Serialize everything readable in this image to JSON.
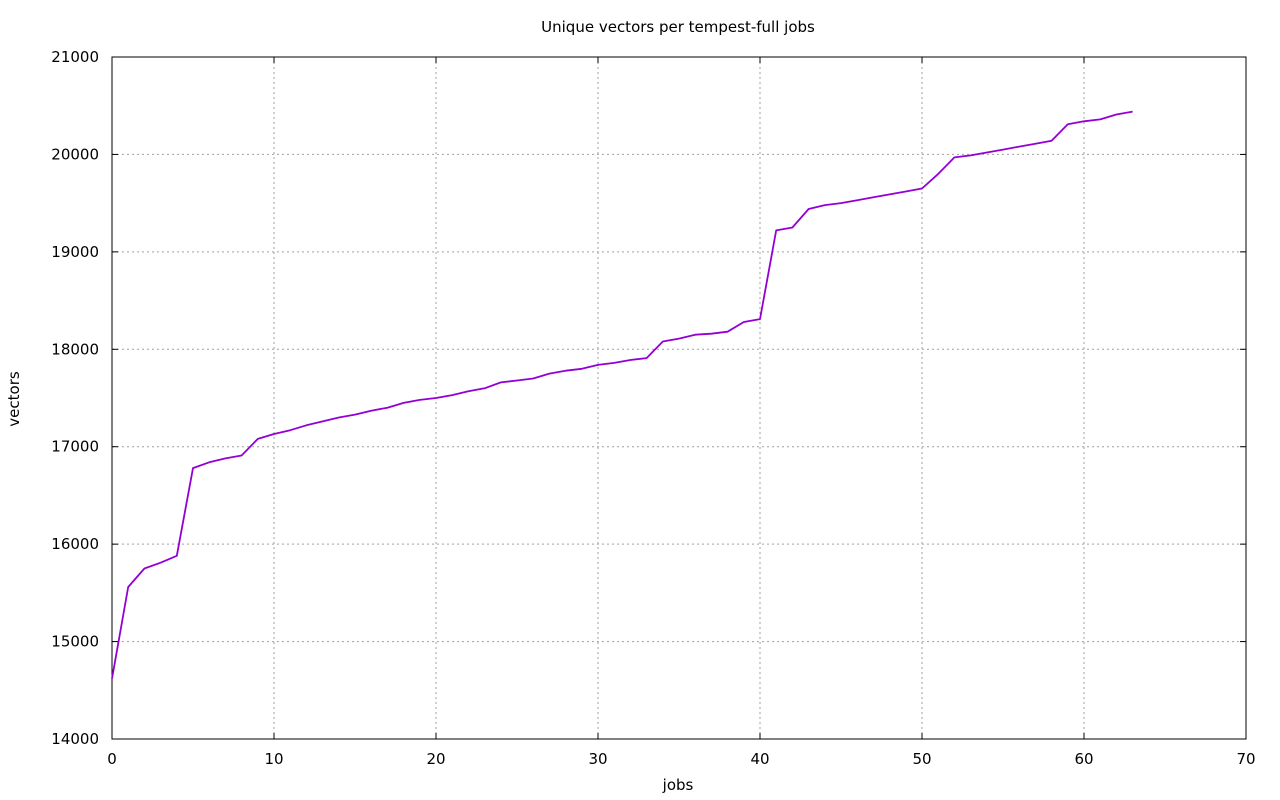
{
  "chart_data": {
    "type": "line",
    "title": "Unique vectors per tempest-full jobs",
    "xlabel": "jobs",
    "ylabel": "vectors",
    "xlim": [
      0,
      70
    ],
    "ylim": [
      14000,
      21000
    ],
    "xticks": [
      0,
      10,
      20,
      30,
      40,
      50,
      60,
      70
    ],
    "yticks": [
      14000,
      15000,
      16000,
      17000,
      18000,
      19000,
      20000,
      21000
    ],
    "grid": true,
    "legend": "none",
    "series": [
      {
        "color": "#9400d3",
        "x": [
          0,
          1,
          2,
          3,
          4,
          5,
          6,
          7,
          8,
          9,
          10,
          11,
          12,
          13,
          14,
          15,
          16,
          17,
          18,
          19,
          20,
          21,
          22,
          23,
          24,
          25,
          26,
          27,
          28,
          29,
          30,
          31,
          32,
          33,
          34,
          35,
          36,
          37,
          38,
          39,
          40,
          41,
          42,
          43,
          44,
          45,
          46,
          47,
          48,
          49,
          50,
          51,
          52,
          53,
          54,
          55,
          56,
          57,
          58,
          59,
          60,
          61,
          62,
          63
        ],
        "y": [
          14620,
          15560,
          15750,
          15810,
          15880,
          16780,
          16840,
          16880,
          16910,
          17080,
          17130,
          17170,
          17220,
          17260,
          17300,
          17330,
          17370,
          17400,
          17450,
          17480,
          17500,
          17530,
          17570,
          17600,
          17660,
          17680,
          17700,
          17750,
          17780,
          17800,
          17840,
          17860,
          17890,
          17910,
          18080,
          18110,
          18150,
          18160,
          18180,
          18280,
          18310,
          19220,
          19250,
          19440,
          19480,
          19500,
          19530,
          19560,
          19590,
          19620,
          19650,
          19800,
          19970,
          19990,
          20020,
          20050,
          20080,
          20110,
          20140,
          20310,
          20340,
          20360,
          20410,
          20440
        ]
      }
    ]
  }
}
